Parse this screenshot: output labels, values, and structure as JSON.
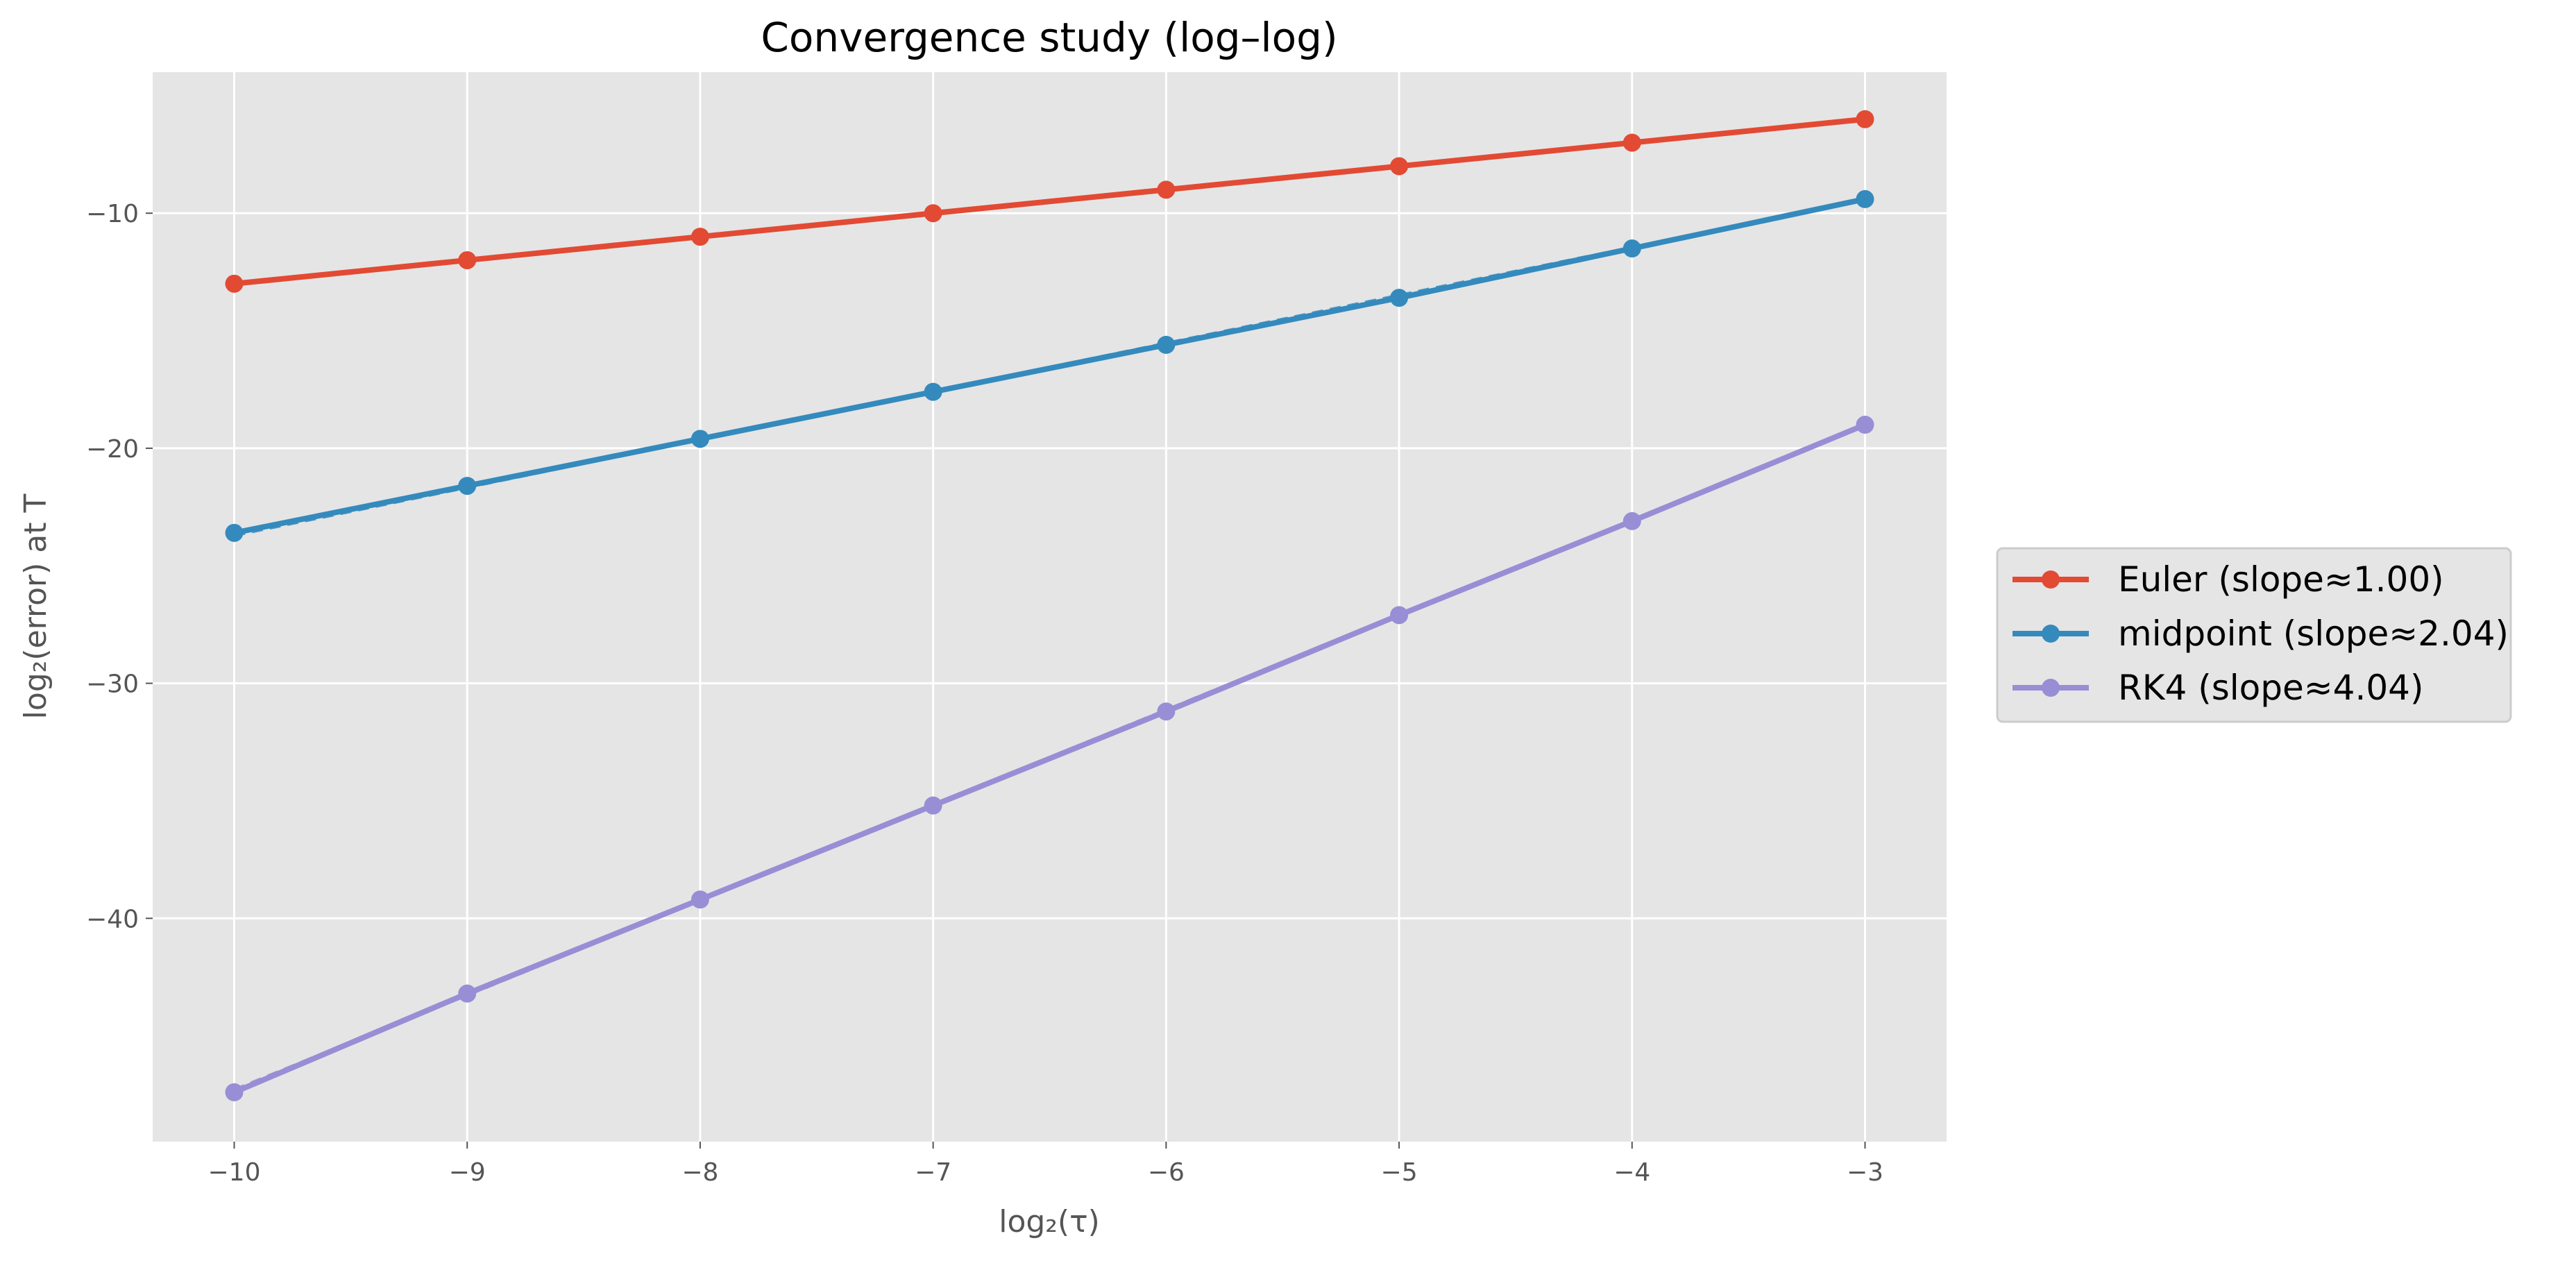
{
  "chart_data": {
    "type": "line",
    "title": "Convergence study (log–log)",
    "xlabel": "log₂(τ)",
    "ylabel": "log₂(error) at T",
    "x": [
      -10,
      -9,
      -8,
      -7,
      -6,
      -5,
      -4,
      -3
    ],
    "xlim": [
      -10.35,
      -2.65
    ],
    "ylim": [
      -49.5,
      -4.0
    ],
    "xticks": [
      -10,
      -9,
      -8,
      -7,
      -6,
      -5,
      -4,
      -3
    ],
    "yticks": [
      -10,
      -20,
      -30,
      -40
    ],
    "xtick_labels": [
      "−10",
      "−9",
      "−8",
      "−7",
      "−6",
      "−5",
      "−4",
      "−3"
    ],
    "ytick_labels": [
      "−10",
      "−20",
      "−30",
      "−40"
    ],
    "grid": true,
    "legend_position": "right, outside plot",
    "background": "#e5e5e5",
    "series": [
      {
        "name": "Euler (slope≈1.00)",
        "color": "#e24a33",
        "values": [
          -13.0,
          -12.0,
          -11.0,
          -10.0,
          -9.0,
          -8.0,
          -7.0,
          -6.0
        ],
        "fit_values": [
          -13.0,
          -12.0,
          -11.0,
          -10.0,
          -9.0,
          -8.0,
          -7.0,
          -6.0
        ]
      },
      {
        "name": "midpoint (slope≈2.04)",
        "color": "#348abd",
        "values": [
          -23.6,
          -21.6,
          -19.6,
          -17.6,
          -15.6,
          -13.6,
          -11.5,
          -9.4
        ],
        "fit_values": [
          -23.7,
          -21.66,
          -19.62,
          -17.58,
          -15.54,
          -13.5,
          -11.46,
          -9.42
        ]
      },
      {
        "name": "RK4 (slope≈4.04)",
        "color": "#988ed5",
        "values": [
          -47.4,
          -43.2,
          -39.2,
          -35.2,
          -31.2,
          -27.1,
          -23.1,
          -19.0
        ],
        "fit_values": [
          -47.3,
          -43.26,
          -39.22,
          -35.18,
          -31.14,
          -27.1,
          -23.06,
          -19.02
        ]
      }
    ]
  }
}
